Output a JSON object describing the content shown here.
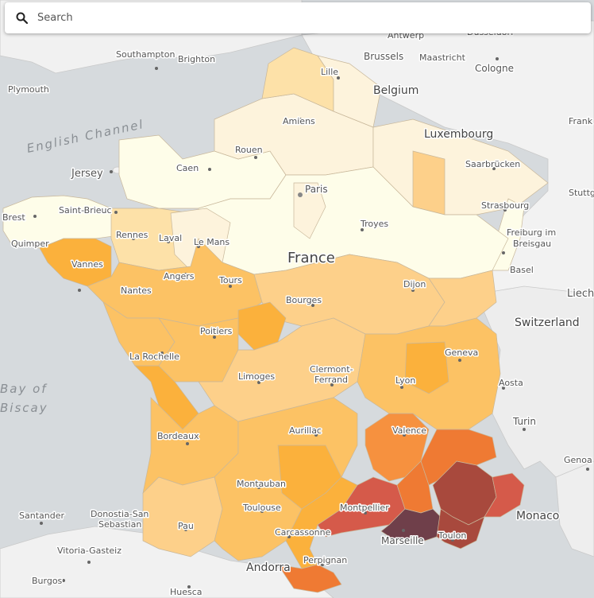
{
  "search": {
    "placeholder": "Search"
  },
  "colors": {
    "water": "#d6dadd",
    "land": "#f2f2f2",
    "scale": [
      "#fefde9",
      "#fdf3dc",
      "#fde1a8",
      "#fdd08a",
      "#fcc264",
      "#fbb13c",
      "#f6913f",
      "#ef7a33",
      "#d55a4a",
      "#a8493d",
      "#6f3f4a"
    ]
  },
  "labels": {
    "seas": {
      "english_channel": "English Channel",
      "bay_of": "Bay of",
      "biscay": "Biscay"
    },
    "countries": {
      "france": "France",
      "belgium": "Belgium",
      "luxembourg": "Luxembourg",
      "switzerland": "Switzerland",
      "monaco": "Monaco",
      "andorra": "Andorra"
    },
    "cities": {
      "southampton": "Southampton",
      "brighton": "Brighton",
      "plymouth": "Plymouth",
      "jersey": "Jersey",
      "antwerp": "Antwerp",
      "brussels": "Brussels",
      "maastricht": "Maastricht",
      "cologne": "Cologne",
      "lille": "Lille",
      "amiens": "Amiens",
      "rouen": "Rouen",
      "caen": "Caen",
      "paris": "Paris",
      "saarbrucken": "Saarbrücken",
      "strasbourg": "Strasbourg",
      "freiburg_1": "Freiburg im",
      "freiburg_2": "Breisgau",
      "basel": "Basel",
      "brest": "Brest",
      "saint_brieuc": "Saint-Brieuc",
      "quimper": "Quimper",
      "rennes": "Rennes",
      "laval": "Laval",
      "le_mans": "Le Mans",
      "vannes": "Vannes",
      "angers": "Angers",
      "tours": "Tours",
      "nantes": "Nantes",
      "troyes": "Troyes",
      "dijon": "Dijon",
      "bourges": "Bourges",
      "poitiers": "Poitiers",
      "la_rochelle": "La Rochelle",
      "limoges": "Limoges",
      "clermont_1": "Clermont-",
      "clermont_2": "Ferrand",
      "geneva": "Geneva",
      "lyon": "Lyon",
      "aosta": "Aosta",
      "turin": "Turin",
      "bordeaux": "Bordeaux",
      "aurillac": "Aurillac",
      "valence": "Valence",
      "genoa": "Genoa",
      "montauban": "Montauban",
      "toulouse": "Toulouse",
      "montpellier": "Montpellier",
      "marseille": "Marseille",
      "toulon": "Toulon",
      "carcassonne": "Carcassonne",
      "perpignan": "Perpignan",
      "santander": "Santander",
      "donostia_1": "Donostia-San",
      "donostia_2": "Sebastian",
      "pau": "Pau",
      "vitoria": "Vitoria-Gasteiz",
      "burgos": "Burgos",
      "huesca": "Huesca",
      "frank": "Frank",
      "stuttg": "Stuttg",
      "liech": "Liech",
      "dusseldorf": "Düsseldorf"
    }
  }
}
